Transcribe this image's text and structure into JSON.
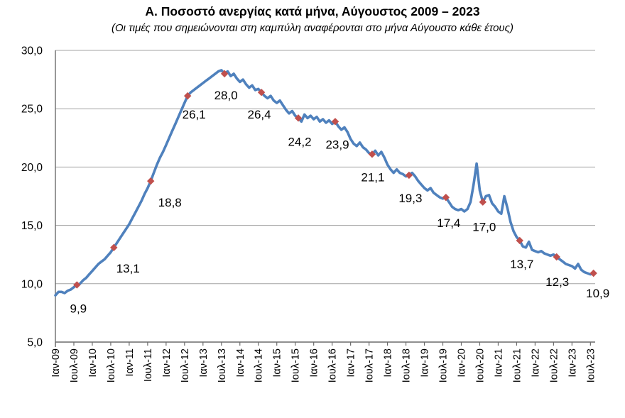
{
  "header": {
    "title": "Α. Ποσοστό ανεργίας κατά μήνα, Αύγουστος 2009 – 2023",
    "subtitle": "(Οι τιμές που σημειώνονται στη καμπύλη αναφέρονται στο μήνα Αύγουστο κάθε έτους)"
  },
  "chart_data": {
    "type": "line",
    "title": "Α. Ποσοστό ανεργίας κατά μήνα, Αύγουστος 2009 – 2023",
    "subtitle": "(Οι τιμές που σημειώνονται στη καμπύλη αναφέρονται στο μήνα Αύγουστο κάθε έτους)",
    "x_period_start": "Ιαν-09",
    "x_period_end": "Αυγ-23",
    "x_tick_labels": [
      "Ιαν-09",
      "Ιουλ-09",
      "Ιαν-10",
      "Ιουλ-10",
      "Ιαν-11",
      "Ιουλ-11",
      "Ιαν-12",
      "Ιουλ-12",
      "Ιαν-13",
      "Ιουλ-13",
      "Ιαν-14",
      "Ιουλ-14",
      "Ιαν-15",
      "Ιουλ-15",
      "Ιαν-16",
      "Ιουλ-16",
      "Ιαν-17",
      "Ιουλ-17",
      "Ιαν-18",
      "Ιουλ-18",
      "Ιαν-19",
      "Ιουλ-19",
      "Ιαν-20",
      "Ιουλ-20",
      "Ιαν-21",
      "Ιουλ-21",
      "Ιαν-22",
      "Ιουλ-22",
      "Ιαν-23",
      "Ιουλ-23"
    ],
    "x_tick_interval_months": 6,
    "y_ticks": [
      5,
      10,
      15,
      20,
      25,
      30
    ],
    "y_tick_labels": [
      "5,0",
      "10,0",
      "15,0",
      "20,0",
      "25,0",
      "30,0"
    ],
    "ylim": [
      5,
      30
    ],
    "grid": true,
    "legend": false,
    "values": [
      9.0,
      9.3,
      9.3,
      9.2,
      9.4,
      9.5,
      9.7,
      9.9,
      10.0,
      10.3,
      10.5,
      10.8,
      11.1,
      11.4,
      11.7,
      11.9,
      12.1,
      12.4,
      12.7,
      13.1,
      13.5,
      13.9,
      14.3,
      14.7,
      15.1,
      15.6,
      16.1,
      16.6,
      17.1,
      17.7,
      18.2,
      18.8,
      19.5,
      20.2,
      20.8,
      21.3,
      21.9,
      22.5,
      23.1,
      23.7,
      24.3,
      24.9,
      25.5,
      26.1,
      26.4,
      26.6,
      26.8,
      27.0,
      27.2,
      27.4,
      27.6,
      27.8,
      28.0,
      28.2,
      28.3,
      28.0,
      28.2,
      27.8,
      28.0,
      27.6,
      27.3,
      27.5,
      27.1,
      26.8,
      27.0,
      26.6,
      26.7,
      26.4,
      26.1,
      25.9,
      26.1,
      25.7,
      25.5,
      25.7,
      25.3,
      24.9,
      24.6,
      24.8,
      24.4,
      24.2,
      23.9,
      24.5,
      24.2,
      24.4,
      24.1,
      24.3,
      23.9,
      24.1,
      23.8,
      24.0,
      23.7,
      23.9,
      23.5,
      23.2,
      23.4,
      23.0,
      22.4,
      22.0,
      21.8,
      22.1,
      21.7,
      21.5,
      21.2,
      21.1,
      21.4,
      21.0,
      21.3,
      20.8,
      20.2,
      19.8,
      19.5,
      19.8,
      19.5,
      19.4,
      19.2,
      19.3,
      19.5,
      19.2,
      18.8,
      18.5,
      18.2,
      18.0,
      18.2,
      17.8,
      17.6,
      17.4,
      17.3,
      17.4,
      17.0,
      16.6,
      16.4,
      16.3,
      16.4,
      16.2,
      16.4,
      17.0,
      18.5,
      20.3,
      18.0,
      17.0,
      17.5,
      17.6,
      16.9,
      16.6,
      16.2,
      16.0,
      17.5,
      16.5,
      15.3,
      14.5,
      14.0,
      13.7,
      13.2,
      13.1,
      13.6,
      12.9,
      12.8,
      12.7,
      12.8,
      12.6,
      12.5,
      12.4,
      12.5,
      12.3,
      12.1,
      11.9,
      11.7,
      11.6,
      11.5,
      11.3,
      11.7,
      11.2,
      11.0,
      10.9,
      10.8,
      10.9
    ],
    "annotations": [
      {
        "month_index": 7,
        "x": "Αυγ-09",
        "value": 9.9,
        "label": "9,9"
      },
      {
        "month_index": 19,
        "x": "Αυγ-10",
        "value": 13.1,
        "label": "13,1"
      },
      {
        "month_index": 31,
        "x": "Αυγ-11",
        "value": 18.8,
        "label": "18,8"
      },
      {
        "month_index": 43,
        "x": "Αυγ-12",
        "value": 26.1,
        "label": "26,1"
      },
      {
        "month_index": 55,
        "x": "Αυγ-13",
        "value": 28.0,
        "label": "28,0"
      },
      {
        "month_index": 67,
        "x": "Αυγ-14",
        "value": 26.4,
        "label": "26,4"
      },
      {
        "month_index": 79,
        "x": "Αυγ-15",
        "value": 24.2,
        "label": "24,2"
      },
      {
        "month_index": 91,
        "x": "Αυγ-16",
        "value": 23.9,
        "label": "23,9"
      },
      {
        "month_index": 103,
        "x": "Αυγ-17",
        "value": 21.1,
        "label": "21,1"
      },
      {
        "month_index": 115,
        "x": "Αυγ-18",
        "value": 19.3,
        "label": "19,3"
      },
      {
        "month_index": 127,
        "x": "Αυγ-19",
        "value": 17.4,
        "label": "17,4"
      },
      {
        "month_index": 139,
        "x": "Αυγ-20",
        "value": 17.0,
        "label": "17,0"
      },
      {
        "month_index": 151,
        "x": "Αυγ-21",
        "value": 13.7,
        "label": "13,7"
      },
      {
        "month_index": 163,
        "x": "Αυγ-22",
        "value": 12.3,
        "label": "12,3"
      },
      {
        "month_index": 175,
        "x": "Αυγ-23",
        "value": 10.9,
        "label": "10,9"
      }
    ],
    "colors": {
      "line": "#4F81BD",
      "marker": "#C0504D",
      "gridline": "#a3a3a3",
      "axis": "#6b6b6b",
      "text": "#000000",
      "background": "#ffffff"
    }
  }
}
